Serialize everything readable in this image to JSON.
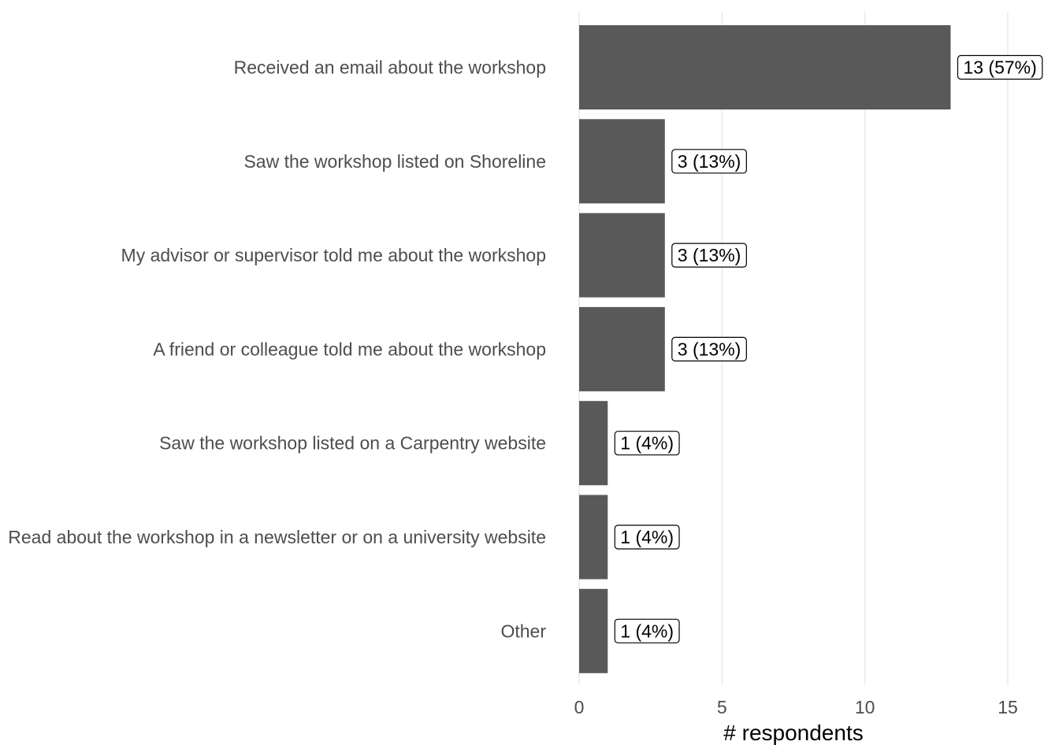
{
  "chart_data": {
    "type": "bar",
    "orientation": "horizontal",
    "categories": [
      "Received an email about the workshop",
      "Saw the workshop listed on Shoreline",
      "My advisor or supervisor told me about the workshop",
      "A friend or colleague told me about the workshop",
      "Saw the workshop listed on a Carpentry website",
      "Read about the workshop in a newsletter or on a university website",
      "Other"
    ],
    "values": [
      13,
      3,
      3,
      3,
      1,
      1,
      1
    ],
    "data_labels": [
      "13 (57%)",
      "3 (13%)",
      "3 (13%)",
      "3 (13%)",
      "1 (4%)",
      "1 (4%)",
      "1 (4%)"
    ],
    "xlabel": "# respondents",
    "ylabel": "",
    "title": "",
    "xlim": [
      0,
      15
    ],
    "x_ticks": [
      0,
      5,
      10,
      15
    ],
    "x_tick_labels": [
      "0",
      "5",
      "10",
      "15"
    ],
    "grid": "vertical major gridlines",
    "legend": "none",
    "bar_color": "#595959",
    "grid_color": "#ebebeb"
  }
}
